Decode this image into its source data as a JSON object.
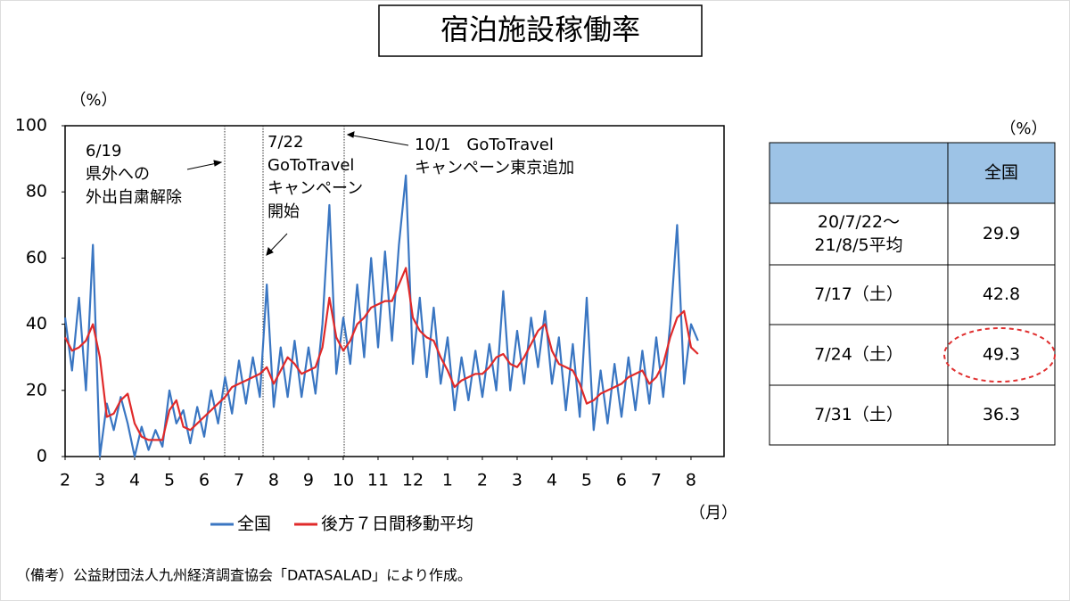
{
  "title": "宿泊施設稼働率",
  "chart_data": {
    "type": "line",
    "y_unit": "（%）",
    "x_unit": "（月）",
    "x": [
      0,
      0.2,
      0.4,
      0.6,
      0.8,
      1,
      1.2,
      1.4,
      1.6,
      1.8,
      2,
      2.2,
      2.4,
      2.6,
      2.8,
      3,
      3.2,
      3.4,
      3.6,
      3.8,
      4,
      4.2,
      4.4,
      4.6,
      4.8,
      5,
      5.2,
      5.4,
      5.6,
      5.8,
      6,
      6.2,
      6.4,
      6.6,
      6.8,
      7,
      7.2,
      7.4,
      7.6,
      7.8,
      8,
      8.2,
      8.4,
      8.6,
      8.8,
      9,
      9.2,
      9.4,
      9.6,
      9.8,
      10,
      10.2,
      10.4,
      10.6,
      10.8,
      11,
      11.2,
      11.4,
      11.6,
      11.8,
      12,
      12.2,
      12.4,
      12.6,
      12.8,
      13,
      13.2,
      13.4,
      13.6,
      13.8,
      14,
      14.2,
      14.4,
      14.6,
      14.8,
      15,
      15.2,
      15.4,
      15.6,
      15.8,
      16,
      16.2,
      16.4,
      16.6,
      16.8,
      17,
      17.2,
      17.4,
      17.6,
      17.8,
      18,
      18.2
    ],
    "xlim": [
      0,
      18.95
    ],
    "xticks": [
      {
        "value": 0,
        "label": "2"
      },
      {
        "value": 1,
        "label": "3"
      },
      {
        "value": 2,
        "label": "4"
      },
      {
        "value": 3,
        "label": "5"
      },
      {
        "value": 4,
        "label": "6"
      },
      {
        "value": 5,
        "label": "7"
      },
      {
        "value": 6,
        "label": "8"
      },
      {
        "value": 7,
        "label": "9"
      },
      {
        "value": 8,
        "label": "10"
      },
      {
        "value": 9,
        "label": "11"
      },
      {
        "value": 10,
        "label": "12"
      },
      {
        "value": 11,
        "label": "1"
      },
      {
        "value": 12,
        "label": "2"
      },
      {
        "value": 13,
        "label": "3"
      },
      {
        "value": 14,
        "label": "4"
      },
      {
        "value": 15,
        "label": "5"
      },
      {
        "value": 16,
        "label": "6"
      },
      {
        "value": 17,
        "label": "7"
      },
      {
        "value": 18,
        "label": "8"
      }
    ],
    "ylim": [
      0,
      100
    ],
    "yticks": [
      0,
      20,
      40,
      60,
      80,
      100
    ],
    "legend": "bottom",
    "series": [
      {
        "name": "全国",
        "color": "#3a76c2",
        "values": [
          42,
          26,
          48,
          20,
          64,
          0,
          16,
          8,
          18,
          10,
          0,
          9,
          2,
          8,
          3,
          20,
          10,
          14,
          4,
          15,
          6,
          20,
          10,
          24,
          13,
          29,
          16,
          30,
          18,
          52,
          15,
          33,
          18,
          35,
          18,
          33,
          19,
          40,
          76,
          25,
          42,
          28,
          52,
          30,
          60,
          33,
          62,
          35,
          64,
          85,
          28,
          48,
          24,
          45,
          22,
          36,
          14,
          30,
          17,
          32,
          18,
          34,
          20,
          50,
          20,
          38,
          22,
          42,
          27,
          44,
          22,
          36,
          14,
          34,
          12,
          48,
          8,
          26,
          10,
          28,
          12,
          30,
          14,
          32,
          16,
          36,
          18,
          40,
          70,
          22,
          40,
          35
        ]
      },
      {
        "name": "後方７日間移動平均",
        "color": "#e02a2a",
        "values": [
          36,
          32,
          33,
          35,
          40,
          30,
          12,
          13,
          17,
          19,
          10,
          6,
          5,
          5,
          5,
          14,
          17,
          9,
          8,
          10,
          12,
          14,
          16,
          18,
          21,
          22,
          23,
          24,
          25,
          27,
          22,
          26,
          30,
          28,
          25,
          26,
          27,
          33,
          48,
          36,
          32,
          35,
          40,
          42,
          45,
          46,
          47,
          47,
          52,
          57,
          42,
          38,
          36,
          35,
          30,
          26,
          21,
          23,
          24,
          25,
          25,
          27,
          30,
          31,
          28,
          27,
          30,
          34,
          38,
          40,
          32,
          28,
          27,
          26,
          22,
          16,
          17,
          19,
          20,
          21,
          22,
          24,
          25,
          26,
          22,
          24,
          28,
          36,
          42,
          44,
          33,
          31
        ]
      }
    ],
    "annotations": [
      {
        "text": [
          "6/19",
          "県外への",
          "外出自粛解除"
        ]
      },
      {
        "text": [
          "7/22",
          "GoToTravel",
          "キャンペーン",
          "開始"
        ]
      },
      {
        "text": [
          "10/1　GoToTravel",
          "キャンペーン東京追加"
        ]
      }
    ]
  },
  "table": {
    "unit": "（%）",
    "header": "全国",
    "rows": [
      {
        "label": [
          "20/7/22～",
          "21/8/5平均"
        ],
        "value": 29.9
      },
      {
        "label": [
          "7/17（土）"
        ],
        "value": 42.8
      },
      {
        "label": [
          "7/24（土）"
        ],
        "value": 49.3
      },
      {
        "label": [
          "7/31（土）"
        ],
        "value": 36.3
      }
    ]
  },
  "note": "（備考）公益財団法人九州経済調査協会「DATASALAD」により作成。"
}
